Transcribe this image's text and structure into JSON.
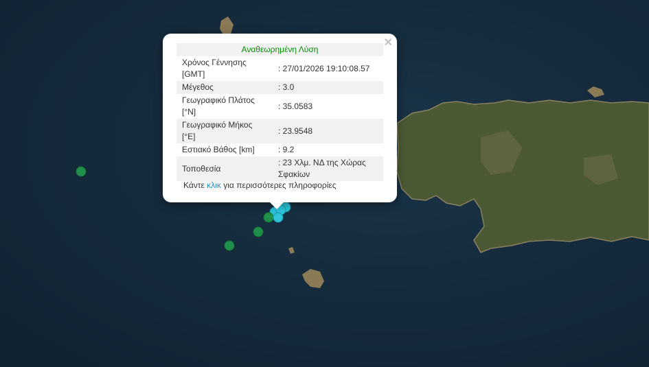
{
  "map": {
    "colors": {
      "sea": "#13283a",
      "land": "#4b5a34",
      "quake_old": "#1f8f4a",
      "quake_recent": "#2ec4d8"
    },
    "markers": [
      {
        "status": "old"
      },
      {
        "status": "old"
      },
      {
        "status": "old"
      },
      {
        "status": "old"
      },
      {
        "status": "recent"
      },
      {
        "status": "recent"
      },
      {
        "status": "recent"
      },
      {
        "status": "recent"
      }
    ]
  },
  "popup": {
    "close_icon": "close-icon",
    "title": "Αναθεωρημένη Λύση",
    "rows": [
      {
        "label": "Χρόνος Γέννησης [GMT]",
        "value": ": 27/01/2026 19:10:08.57"
      },
      {
        "label": "Μέγεθος",
        "value": ": 3.0"
      },
      {
        "label": "Γεωγραφικό Πλάτος [°N]",
        "value": ": 35.0583"
      },
      {
        "label": "Γεωγραφικό Μήκος [°E]",
        "value": ": 23.9548"
      },
      {
        "label": "Εστιακό Βάθος [km]",
        "value": ": 9.2"
      },
      {
        "label": "Τοποθεσία",
        "value": ": 23 Χλμ. ΝΔ της Χώρας Σφακίων"
      }
    ],
    "more_prefix": "Κάντε",
    "more_link": "κλικ",
    "more_suffix": "για περισσότερες πληροφορίες"
  }
}
